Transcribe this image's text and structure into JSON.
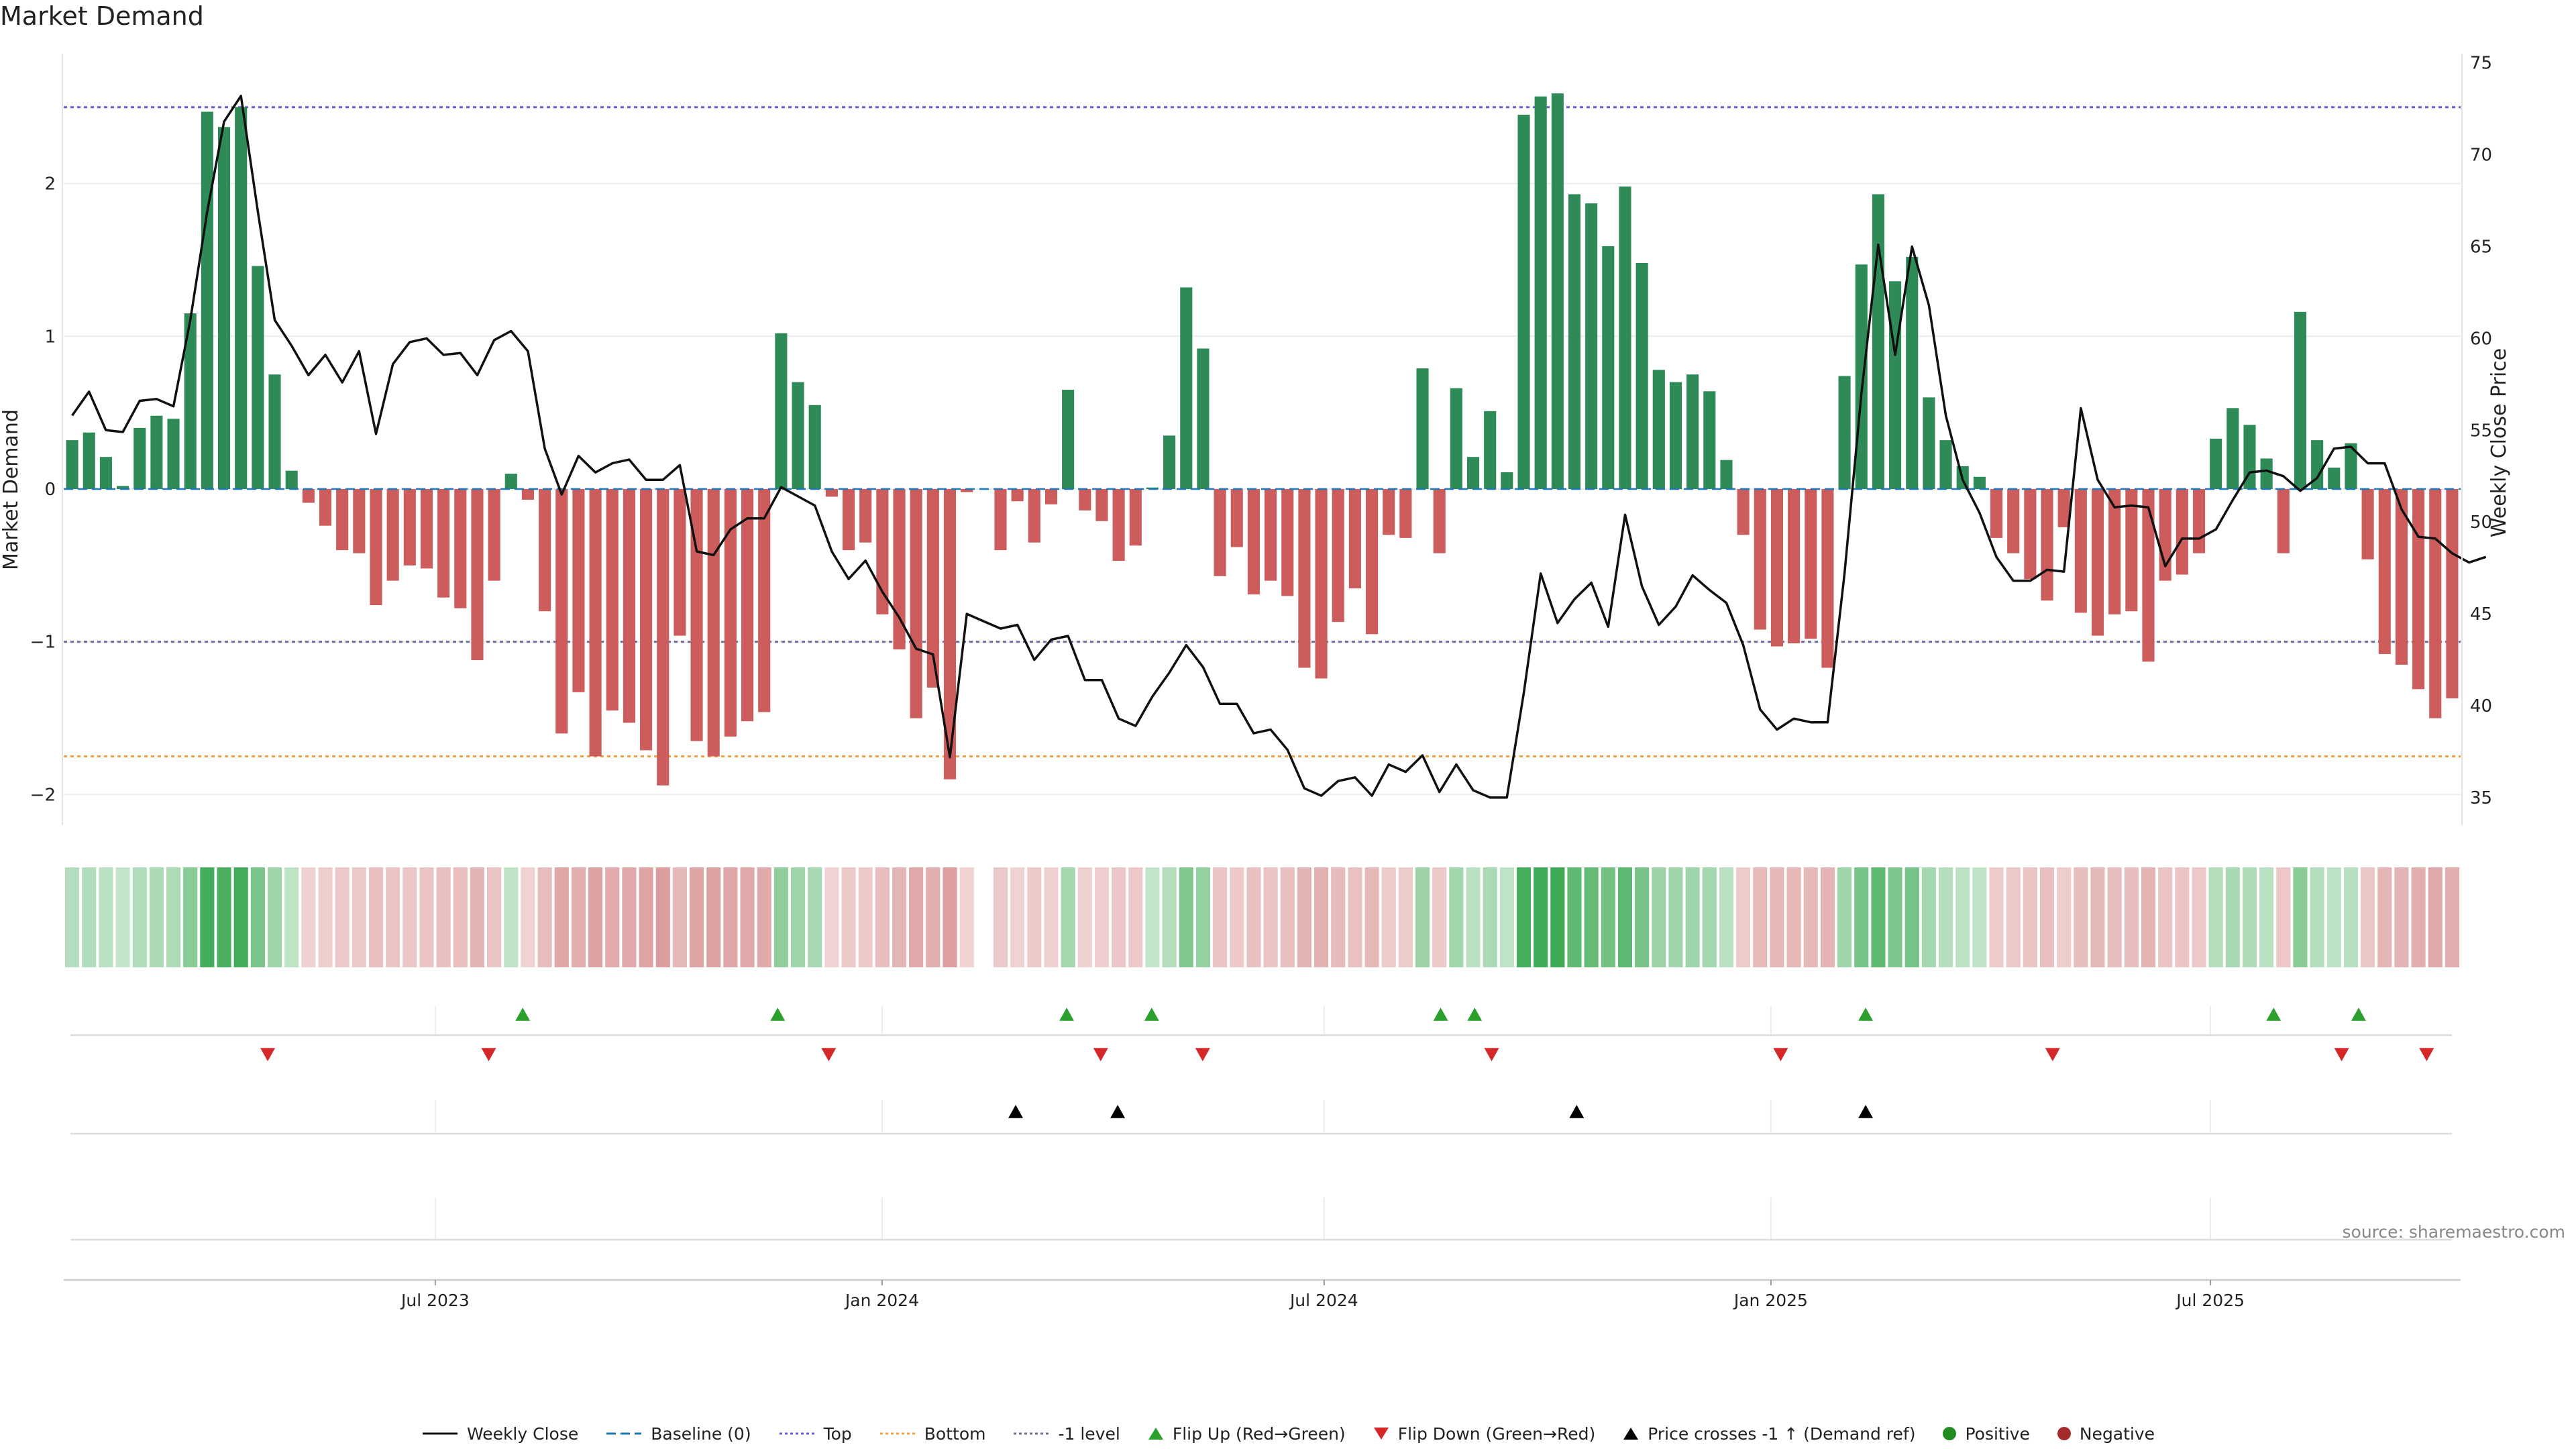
{
  "chart_data": {
    "type": "bar+line",
    "title": "Market Demand",
    "ylabel_left": "Market Demand",
    "ylabel_right": "Weekly Close Price",
    "ylim_left": [
      -2.2,
      2.85
    ],
    "ylim_right": [
      33.5,
      75.5
    ],
    "yticks_left": [
      -2,
      -1,
      0,
      1,
      2
    ],
    "yticks_right": [
      35,
      40,
      45,
      50,
      55,
      60,
      65,
      70,
      75
    ],
    "x_start": "2023-01-29",
    "x_end": "2025-10-12",
    "x_tick_labels": [
      "Jul 2023",
      "Jan 2024",
      "Jul 2024",
      "Jan 2025",
      "Jul 2025"
    ],
    "x_tick_dates": [
      "2023-07-01",
      "2024-01-01",
      "2024-07-01",
      "2025-01-01",
      "2025-07-01"
    ],
    "levels": {
      "top": 2.5,
      "bottom": -1.75,
      "minus_one": -1.0,
      "baseline": 0
    },
    "demand_weekly": [
      0.32,
      0.37,
      0.21,
      0.02,
      0.4,
      0.48,
      0.46,
      1.15,
      2.47,
      2.37,
      2.5,
      1.46,
      0.75,
      0.12,
      -0.09,
      -0.24,
      -0.4,
      -0.42,
      -0.76,
      -0.6,
      -0.5,
      -0.52,
      -0.71,
      -0.78,
      -1.12,
      -0.6,
      0.1,
      -0.07,
      -0.8,
      -1.6,
      -1.33,
      -1.75,
      -1.45,
      -1.53,
      -1.71,
      -1.94,
      -0.96,
      -1.65,
      -1.75,
      -1.62,
      -1.52,
      -1.46,
      1.02,
      0.7,
      0.55,
      -0.05,
      -0.4,
      -0.35,
      -0.82,
      -1.05,
      -1.5,
      -1.3,
      -1.9,
      -0.02,
      null,
      -0.4,
      -0.08,
      -0.35,
      -0.1,
      0.65,
      -0.14,
      -0.21,
      -0.47,
      -0.37,
      0.01,
      0.35,
      1.32,
      0.92,
      -0.57,
      -0.38,
      -0.69,
      -0.6,
      -0.7,
      -1.17,
      -1.24,
      -0.87,
      -0.65,
      -0.95,
      -0.3,
      -0.32,
      0.79,
      -0.42,
      0.66,
      0.21,
      0.51,
      0.11,
      2.45,
      2.57,
      2.59,
      1.93,
      1.87,
      1.59,
      1.98,
      1.48,
      0.78,
      0.7,
      0.75,
      0.64,
      0.19,
      -0.3,
      -0.92,
      -1.03,
      -1.01,
      -0.98,
      -1.17,
      0.74,
      1.47,
      1.93,
      1.36,
      1.52,
      0.6,
      0.32,
      0.15,
      0.08,
      -0.32,
      -0.42,
      -0.59,
      -0.73,
      -0.25,
      -0.81,
      -0.96,
      -0.82,
      -0.8,
      -1.13,
      -0.6,
      -0.56,
      -0.42,
      0.33,
      0.53,
      0.42,
      0.2,
      -0.42,
      1.16,
      0.32,
      0.14,
      0.3,
      -0.46,
      -1.08,
      -1.15,
      -1.31,
      -1.5,
      -1.37
    ],
    "weekly_close": [
      55.8,
      57.1,
      55.0,
      54.9,
      56.6,
      56.7,
      56.3,
      61.0,
      66.9,
      71.8,
      73.2,
      66.9,
      61.0,
      59.6,
      58.0,
      59.1,
      57.6,
      59.3,
      54.8,
      58.6,
      59.8,
      60.0,
      59.1,
      59.2,
      58.0,
      59.9,
      60.4,
      59.3,
      54.0,
      51.5,
      53.6,
      52.7,
      53.2,
      53.4,
      52.3,
      52.3,
      53.1,
      48.4,
      48.2,
      49.6,
      50.2,
      50.2,
      51.9,
      51.4,
      50.9,
      48.4,
      46.9,
      47.9,
      46.2,
      44.8,
      43.1,
      42.8,
      37.2,
      45.0,
      44.6,
      44.2,
      44.4,
      42.5,
      43.6,
      43.8,
      41.4,
      41.4,
      39.3,
      38.9,
      40.5,
      41.8,
      43.3,
      42.1,
      40.1,
      40.1,
      38.5,
      38.7,
      37.6,
      35.5,
      35.1,
      35.9,
      36.1,
      35.1,
      36.8,
      36.4,
      37.3,
      35.3,
      36.8,
      35.4,
      35.0,
      35.0,
      40.7,
      47.2,
      44.5,
      45.8,
      46.7,
      44.3,
      50.4,
      46.5,
      44.4,
      45.4,
      47.1,
      46.3,
      45.6,
      43.3,
      39.8,
      38.7,
      39.3,
      39.1,
      39.1,
      47.2,
      57.0,
      65.1,
      59.1,
      65.0,
      61.8,
      55.8,
      52.3,
      50.5,
      48.1,
      46.8,
      46.8,
      47.4,
      47.3,
      56.2,
      52.3,
      50.8,
      50.9,
      50.8,
      47.6,
      49.1,
      49.1,
      49.6,
      51.2,
      52.7,
      52.8,
      52.5,
      51.7,
      52.4,
      54.0,
      54.1,
      53.2,
      53.2,
      50.7,
      49.2,
      49.1,
      48.3,
      47.8,
      48.1
    ],
    "flip_up_dates": [
      "2023-08-06",
      "2023-11-19",
      "2024-03-17",
      "2024-04-21",
      "2024-08-18",
      "2024-09-01",
      "2025-02-09",
      "2025-07-27",
      "2025-08-31"
    ],
    "flip_down_dates": [
      "2023-04-23",
      "2023-07-23",
      "2023-12-10",
      "2024-03-31",
      "2024-05-12",
      "2024-09-08",
      "2025-01-05",
      "2025-04-27",
      "2025-08-24",
      "2025-09-28"
    ],
    "price_cross_dates": [
      "2024-02-25",
      "2024-04-07",
      "2024-10-13",
      "2025-02-09"
    ],
    "colors": {
      "positive": "#2e8b57",
      "negative": "#cd5c5c",
      "line": "#111111",
      "top": "#6a5acd",
      "bottom": "#f0a040",
      "minus_one": "#6e6e9e",
      "flip_up": "#2ca02c",
      "flip_down": "#d62728",
      "cross": "#000000",
      "pos_dot": "#228b22",
      "neg_dot": "#a52a2a"
    }
  },
  "title": "Market Demand",
  "source": "source: sharemaestro.com",
  "legend": {
    "weekly_close": "Weekly Close",
    "baseline": "Baseline (0)",
    "top": "Top",
    "bottom": "Bottom",
    "minus_one": "-1 level",
    "flip_up": "Flip Up (Red→Green)",
    "flip_down": "Flip Down (Green→Red)",
    "price_cross": "Price crosses -1 ↑ (Demand ref)",
    "positive": "Positive",
    "negative": "Negative"
  }
}
